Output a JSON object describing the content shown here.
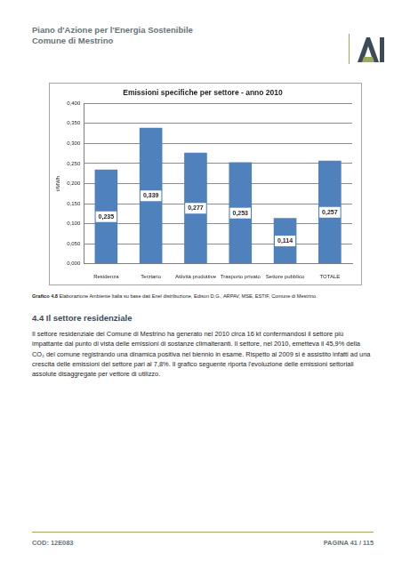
{
  "header": {
    "title": "Piano d'Azione per l'Energia Sostenibile",
    "subtitle": "Comune di Mestrino"
  },
  "chart_data": {
    "type": "bar",
    "title": "Emissioni specifiche per settore - anno 2010",
    "y_label": "t/MWh",
    "categories": [
      "Residenza",
      "Terziario",
      "Attività produttive",
      "Trasporto privato",
      "Settore pubblico",
      "TOTALE"
    ],
    "values": [
      0.235,
      0.339,
      0.277,
      0.253,
      0.114,
      0.257
    ],
    "value_labels": [
      "0,235",
      "0,339",
      "0,277",
      "0,253",
      "0,114",
      "0,257"
    ],
    "data_labels": true,
    "color": "#4f81bd",
    "grid": true,
    "ylim": [
      0,
      0.4
    ],
    "yticks": [
      {
        "value": 0,
        "label": "0,000"
      },
      {
        "value": 0.05,
        "label": "0,050"
      },
      {
        "value": 0.1,
        "label": "0,100"
      },
      {
        "value": 0.15,
        "label": "0,150"
      },
      {
        "value": 0.2,
        "label": "0,200"
      },
      {
        "value": 0.25,
        "label": "0,250"
      },
      {
        "value": 0.3,
        "label": "0,300"
      },
      {
        "value": 0.35,
        "label": "0,350"
      },
      {
        "value": 0.4,
        "label": "0,400"
      }
    ]
  },
  "caption": {
    "label": "Grafico 4.8",
    "text": "Elaborazione Ambiente Italia su base dati Enel distribuzione, Edison D.G., ARPAV, MSE, ESTIF, Comune di Mestrino."
  },
  "section": {
    "heading": "4.4 Il settore residenziale",
    "paragraph": "Il settore residenziale del Comune di Mestrino ha generato nel 2010 circa 16 kt confermandosi il settore più impattante dal punto di vista delle emissioni di sostanze climalteranti. Il settore, nel 2010, emetteva il 45,9% della CO₂ del comune registrando una dinamica positiva nel biennio in esame. Rispetto al 2009 si è assistito infatti ad una crescita delle emissioni del settore pari al 7,8%. Il grafico seguente riporta l'evoluzione delle emissioni settoriali assolute disaggregate per vettore di utilizzo."
  },
  "footer": {
    "code": "COD: 12E083",
    "page": "PAGINA 41 / 115"
  }
}
